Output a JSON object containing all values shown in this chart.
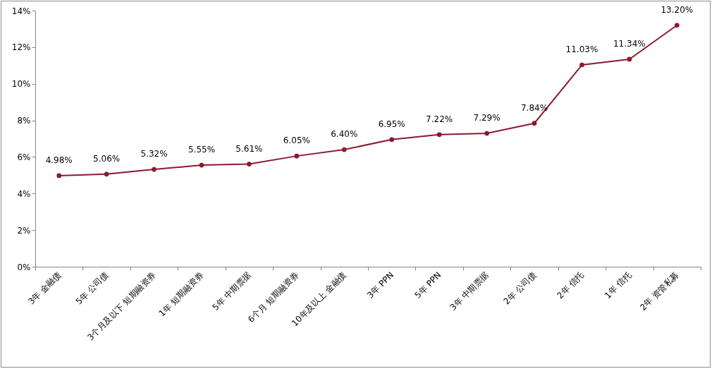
{
  "chart_data": {
    "type": "line",
    "categories": [
      "3年 金融债",
      "5年 公司债",
      "3个月及以下 短期融资券",
      "1年 短期融资券",
      "5年 中期票据",
      "6个月 短期融资券",
      "10年及以上 金融债",
      "3年 PPN",
      "5年 PPN",
      "3年 中期票据",
      "2年 公司债",
      "2年 信托",
      "1年 信托",
      "2年 资管私募"
    ],
    "series": [
      {
        "color": "#8b1a2e",
        "values": [
          4.98,
          5.06,
          5.32,
          5.55,
          5.61,
          6.05,
          6.4,
          6.95,
          7.22,
          7.29,
          7.84,
          11.03,
          11.34,
          13.2
        ],
        "value_labels": [
          "4.98%",
          "5.06%",
          "5.32%",
          "5.55%",
          "5.61%",
          "6.05%",
          "6.40%",
          "6.95%",
          "7.22%",
          "7.29%",
          "7.84%",
          "11.03%",
          "11.34%",
          "13.20%"
        ]
      }
    ],
    "ylim": [
      0,
      14
    ],
    "yticks": [
      {
        "value": 0,
        "label": "0%"
      },
      {
        "value": 2,
        "label": "2%"
      },
      {
        "value": 4,
        "label": "4%"
      },
      {
        "value": 6,
        "label": "6%"
      },
      {
        "value": 8,
        "label": "8%"
      },
      {
        "value": 10,
        "label": "10%"
      },
      {
        "value": 12,
        "label": "12%"
      },
      {
        "value": 14,
        "label": "14%"
      }
    ],
    "marker": "circle",
    "line_style": "solid"
  }
}
